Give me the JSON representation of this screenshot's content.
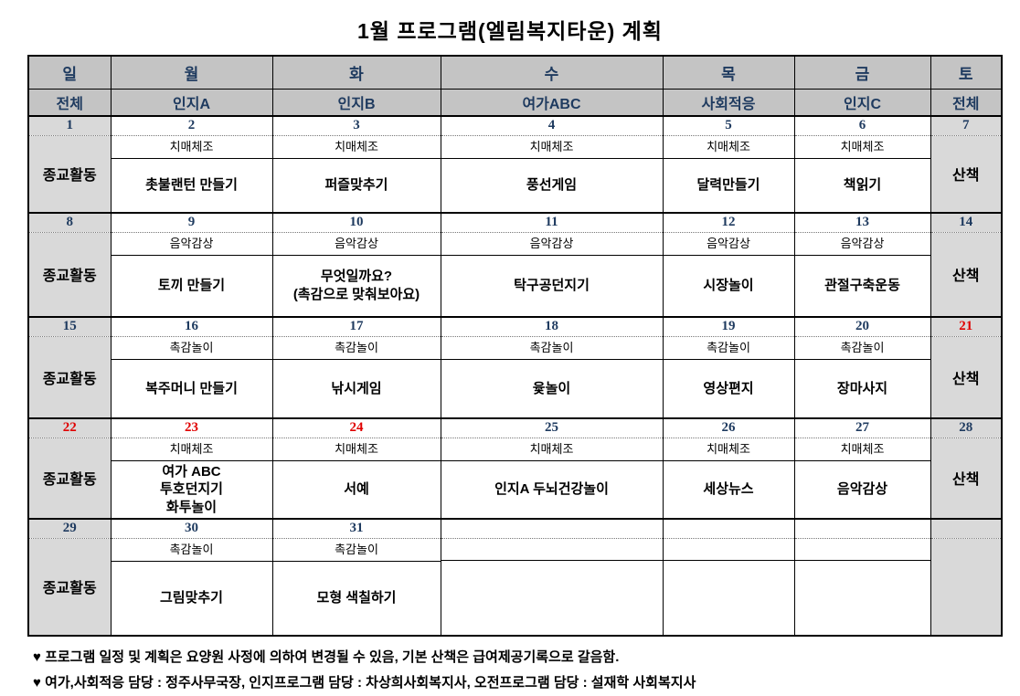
{
  "title": "1월  프로그램(엘림복지타운)  계획",
  "colors": {
    "header_bg": "#c4c4c4",
    "side_bg": "#d9d9d9",
    "navy": "#1e3a5f",
    "red": "#e00000",
    "border": "#000000",
    "page_bg": "#ffffff"
  },
  "table": {
    "day_headers": [
      "일",
      "월",
      "화",
      "수",
      "목",
      "금",
      "토"
    ],
    "group_headers": [
      "전체",
      "인지A",
      "인지B",
      "여가ABC",
      "사회적응",
      "인지C",
      "전체"
    ],
    "weeks": [
      {
        "sunday": "종교활동",
        "saturday": "산책",
        "dates": [
          {
            "label": "1",
            "variant": "navy"
          },
          {
            "label": "2",
            "variant": "navy"
          },
          {
            "label": "3",
            "variant": "navy"
          },
          {
            "label": "4",
            "variant": "navy"
          },
          {
            "label": "5",
            "variant": "navy"
          },
          {
            "label": "6",
            "variant": "navy"
          },
          {
            "label": "7",
            "variant": "navy"
          }
        ],
        "programs": [
          {
            "morning": "치매체조",
            "main": "촛불랜턴 만들기"
          },
          {
            "morning": "치매체조",
            "main": "퍼즐맞추기"
          },
          {
            "morning": "치매체조",
            "main": "풍선게임"
          },
          {
            "morning": "치매체조",
            "main": "달력만들기"
          },
          {
            "morning": "치매체조",
            "main": "책읽기"
          }
        ]
      },
      {
        "sunday": "종교활동",
        "saturday": "산책",
        "dates": [
          {
            "label": "8",
            "variant": "navy"
          },
          {
            "label": "9",
            "variant": "navy"
          },
          {
            "label": "10",
            "variant": "navy"
          },
          {
            "label": "11",
            "variant": "navy"
          },
          {
            "label": "12",
            "variant": "navy"
          },
          {
            "label": "13",
            "variant": "navy"
          },
          {
            "label": "14",
            "variant": "navy"
          }
        ],
        "programs": [
          {
            "morning": "음악감상",
            "main": "토끼 만들기"
          },
          {
            "morning": "음악감상",
            "main": "무엇일까요?\n(촉감으로 맞춰보아요)"
          },
          {
            "morning": "음악감상",
            "main": "탁구공던지기"
          },
          {
            "morning": "음악감상",
            "main": "시장놀이"
          },
          {
            "morning": "음악감상",
            "main": "관절구축운동"
          }
        ]
      },
      {
        "sunday": "종교활동",
        "saturday": "산책",
        "dates": [
          {
            "label": "15",
            "variant": "navy"
          },
          {
            "label": "16",
            "variant": "navy"
          },
          {
            "label": "17",
            "variant": "navy"
          },
          {
            "label": "18",
            "variant": "navy"
          },
          {
            "label": "19",
            "variant": "navy"
          },
          {
            "label": "20",
            "variant": "navy"
          },
          {
            "label": "21",
            "variant": "red"
          }
        ],
        "programs": [
          {
            "morning": "촉감놀이",
            "main": "복주머니 만들기"
          },
          {
            "morning": "촉감놀이",
            "main": "낚시게임"
          },
          {
            "morning": "촉감놀이",
            "main": "윷놀이"
          },
          {
            "morning": "촉감놀이",
            "main": "영상편지"
          },
          {
            "morning": "촉감놀이",
            "main": "장마사지"
          }
        ]
      },
      {
        "sunday": "종교활동",
        "saturday": "산책",
        "dates": [
          {
            "label": "22",
            "variant": "red"
          },
          {
            "label": "23",
            "variant": "red"
          },
          {
            "label": "24",
            "variant": "red"
          },
          {
            "label": "25",
            "variant": "navy"
          },
          {
            "label": "26",
            "variant": "navy"
          },
          {
            "label": "27",
            "variant": "navy"
          },
          {
            "label": "28",
            "variant": "navy"
          }
        ],
        "programs": [
          {
            "morning": "치매체조",
            "main": "여가 ABC\n투호던지기\n화투놀이"
          },
          {
            "morning": "치매체조",
            "main": "서예"
          },
          {
            "morning": "치매체조",
            "main": "인지A 두뇌건강놀이"
          },
          {
            "morning": "치매체조",
            "main": "세상뉴스"
          },
          {
            "morning": "치매체조",
            "main": "음악감상"
          }
        ]
      },
      {
        "sunday": "종교활동",
        "saturday": "",
        "dates": [
          {
            "label": "29",
            "variant": "navy"
          },
          {
            "label": "30",
            "variant": "navy"
          },
          {
            "label": "31",
            "variant": "navy"
          },
          {
            "label": "",
            "variant": "navy"
          },
          {
            "label": "",
            "variant": "navy"
          },
          {
            "label": "",
            "variant": "navy"
          },
          {
            "label": "",
            "variant": "navy"
          }
        ],
        "programs": [
          {
            "morning": "촉감놀이",
            "main": "그림맞추기"
          },
          {
            "morning": "촉감놀이",
            "main": "모형 색칠하기"
          },
          {
            "morning": "",
            "main": ""
          },
          {
            "morning": "",
            "main": ""
          },
          {
            "morning": "",
            "main": ""
          }
        ]
      }
    ]
  },
  "footnotes": [
    "♥ 프로그램 일정 및 계획은 요양원 사정에 의하여 변경될 수 있음, 기본 산책은 급여제공기록으로 갈음함.",
    "♥ 여가,사회적응 담당 : 정주사무국장, 인지프로그램 담당 : 차상희사회복지사, 오전프로그램 담당 : 설재학 사회복지사"
  ]
}
